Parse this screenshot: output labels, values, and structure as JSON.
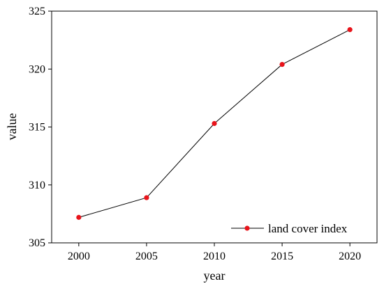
{
  "chart_data": {
    "type": "line",
    "x": [
      2000,
      2005,
      2010,
      2015,
      2020
    ],
    "xticks": [
      "2000",
      "2005",
      "2010",
      "2015",
      "2020"
    ],
    "xlim": [
      1998,
      2022
    ],
    "ylim": [
      305,
      325
    ],
    "yticks": [
      "305",
      "310",
      "315",
      "320",
      "325"
    ],
    "xlabel": "year",
    "ylabel": "value",
    "title": "",
    "grid": false,
    "legend_position": "bottom-right",
    "series": [
      {
        "name": "land cover index",
        "values": [
          307.2,
          308.9,
          315.3,
          320.4,
          323.4
        ],
        "line_color": "#000000",
        "marker_color": "#e8141b"
      }
    ]
  }
}
